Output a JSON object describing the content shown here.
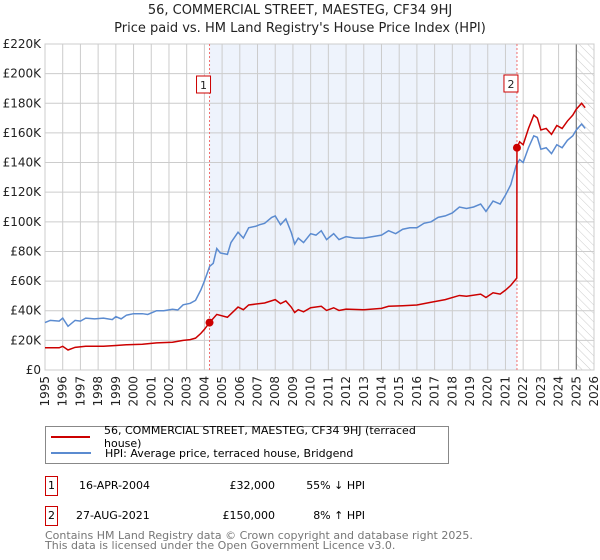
{
  "chart_data": {
    "type": "line",
    "title": "56, COMMERCIAL STREET, MAESTEG, CF34 9HJ",
    "subtitle": "Price paid vs. HM Land Registry's House Price Index (HPI)",
    "xlim": [
      1995,
      2026
    ],
    "ylim": [
      0,
      220000
    ],
    "yticks": [
      {
        "v": 0,
        "label": "£0"
      },
      {
        "v": 20000,
        "label": "£20K"
      },
      {
        "v": 40000,
        "label": "£40K"
      },
      {
        "v": 60000,
        "label": "£60K"
      },
      {
        "v": 80000,
        "label": "£80K"
      },
      {
        "v": 100000,
        "label": "£100K"
      },
      {
        "v": 120000,
        "label": "£120K"
      },
      {
        "v": 140000,
        "label": "£140K"
      },
      {
        "v": 160000,
        "label": "£160K"
      },
      {
        "v": 180000,
        "label": "£180K"
      },
      {
        "v": 200000,
        "label": "£200K"
      },
      {
        "v": 220000,
        "label": "£220K"
      }
    ],
    "xticks": [
      "1995",
      "1996",
      "1997",
      "1998",
      "1999",
      "2000",
      "2001",
      "2002",
      "2003",
      "2004",
      "2005",
      "2006",
      "2007",
      "2008",
      "2009",
      "2010",
      "2011",
      "2012",
      "2013",
      "2014",
      "2015",
      "2016",
      "2017",
      "2018",
      "2019",
      "2020",
      "2021",
      "2022",
      "2023",
      "2024",
      "2025",
      "2026"
    ],
    "grid": true,
    "shaded_range": [
      2004.29,
      2021.65
    ],
    "forecast_from": 2025.0,
    "series": [
      {
        "name": "56, COMMERCIAL STREET, MAESTEG, CF34 9HJ (terraced house)",
        "color": "#cc0000",
        "unit": "K",
        "points": [
          [
            1995.0,
            15
          ],
          [
            1995.8,
            15
          ],
          [
            1996.0,
            16
          ],
          [
            1996.3,
            13.5
          ],
          [
            1996.7,
            15.3
          ],
          [
            1997.3,
            16
          ],
          [
            1998.3,
            16
          ],
          [
            1999.0,
            16.5
          ],
          [
            1999.6,
            17
          ],
          [
            2000.5,
            17.4
          ],
          [
            2001.3,
            18.3
          ],
          [
            2002.2,
            18.7
          ],
          [
            2002.8,
            20
          ],
          [
            2003.2,
            20.5
          ],
          [
            2003.5,
            21.5
          ],
          [
            2003.8,
            24.7
          ],
          [
            2004.0,
            27.4
          ],
          [
            2004.29,
            32
          ],
          [
            2004.7,
            37.5
          ],
          [
            2005.3,
            35.6
          ],
          [
            2005.9,
            42.5
          ],
          [
            2006.2,
            40.7
          ],
          [
            2006.5,
            43.9
          ],
          [
            2007.4,
            45.2
          ],
          [
            2008.0,
            47.5
          ],
          [
            2008.3,
            44.8
          ],
          [
            2008.6,
            46.6
          ],
          [
            2008.9,
            42.5
          ],
          [
            2009.1,
            38.8
          ],
          [
            2009.3,
            40.7
          ],
          [
            2009.6,
            39.3
          ],
          [
            2010.0,
            42
          ],
          [
            2010.6,
            43
          ],
          [
            2010.9,
            40.2
          ],
          [
            2011.3,
            42
          ],
          [
            2011.6,
            40.2
          ],
          [
            2012.0,
            41.1
          ],
          [
            2013.0,
            40.7
          ],
          [
            2014.0,
            41.6
          ],
          [
            2014.4,
            43
          ],
          [
            2015.2,
            43.4
          ],
          [
            2016.0,
            43.9
          ],
          [
            2016.8,
            45.7
          ],
          [
            2017.6,
            47.5
          ],
          [
            2018.4,
            50.3
          ],
          [
            2018.8,
            49.8
          ],
          [
            2019.6,
            51.2
          ],
          [
            2019.9,
            48.9
          ],
          [
            2020.3,
            52.1
          ],
          [
            2020.7,
            51.2
          ],
          [
            2021.0,
            53.9
          ],
          [
            2021.3,
            57.1
          ],
          [
            2021.64,
            62
          ],
          [
            2021.65,
            150
          ],
          [
            2021.8,
            154
          ],
          [
            2022.0,
            152
          ],
          [
            2022.3,
            163
          ],
          [
            2022.6,
            172
          ],
          [
            2022.8,
            170
          ],
          [
            2023.0,
            162
          ],
          [
            2023.3,
            163
          ],
          [
            2023.6,
            159
          ],
          [
            2023.9,
            165
          ],
          [
            2024.2,
            163
          ],
          [
            2024.5,
            168
          ],
          [
            2024.8,
            172
          ],
          [
            2025.0,
            176
          ],
          [
            2025.3,
            180
          ],
          [
            2025.5,
            177
          ]
        ]
      },
      {
        "name": "HPI: Average price, terraced house, Bridgend",
        "color": "#5b8bd0",
        "unit": "K",
        "points": [
          [
            1995.0,
            32
          ],
          [
            1995.3,
            33.5
          ],
          [
            1995.8,
            33
          ],
          [
            1996.0,
            35
          ],
          [
            1996.3,
            29.5
          ],
          [
            1996.7,
            33.5
          ],
          [
            1997.0,
            33
          ],
          [
            1997.3,
            35
          ],
          [
            1997.8,
            34.5
          ],
          [
            1998.3,
            35
          ],
          [
            1998.8,
            34
          ],
          [
            1999.0,
            36
          ],
          [
            1999.3,
            34.5
          ],
          [
            1999.6,
            37
          ],
          [
            2000.0,
            38
          ],
          [
            2000.5,
            38
          ],
          [
            2000.8,
            37.5
          ],
          [
            2001.3,
            40
          ],
          [
            2001.7,
            40
          ],
          [
            2002.2,
            41
          ],
          [
            2002.5,
            40.5
          ],
          [
            2002.8,
            44
          ],
          [
            2003.2,
            45
          ],
          [
            2003.5,
            47
          ],
          [
            2003.8,
            54
          ],
          [
            2004.0,
            60
          ],
          [
            2004.3,
            70
          ],
          [
            2004.5,
            72
          ],
          [
            2004.7,
            82
          ],
          [
            2004.9,
            79
          ],
          [
            2005.3,
            78
          ],
          [
            2005.5,
            86
          ],
          [
            2005.9,
            93
          ],
          [
            2006.2,
            89
          ],
          [
            2006.5,
            96
          ],
          [
            2006.9,
            97
          ],
          [
            2007.1,
            98
          ],
          [
            2007.4,
            99
          ],
          [
            2007.8,
            103
          ],
          [
            2008.0,
            104
          ],
          [
            2008.3,
            98
          ],
          [
            2008.6,
            102
          ],
          [
            2008.9,
            93
          ],
          [
            2009.1,
            85
          ],
          [
            2009.3,
            89
          ],
          [
            2009.6,
            86
          ],
          [
            2010.0,
            92
          ],
          [
            2010.3,
            91
          ],
          [
            2010.6,
            94
          ],
          [
            2010.9,
            88
          ],
          [
            2011.3,
            92
          ],
          [
            2011.6,
            88
          ],
          [
            2012.0,
            90
          ],
          [
            2012.5,
            89
          ],
          [
            2013.0,
            89
          ],
          [
            2013.5,
            90
          ],
          [
            2014.0,
            91
          ],
          [
            2014.4,
            94
          ],
          [
            2014.8,
            92
          ],
          [
            2015.2,
            95
          ],
          [
            2015.6,
            96
          ],
          [
            2016.0,
            96
          ],
          [
            2016.4,
            99
          ],
          [
            2016.8,
            100
          ],
          [
            2017.2,
            103
          ],
          [
            2017.6,
            104
          ],
          [
            2018.0,
            106
          ],
          [
            2018.4,
            110
          ],
          [
            2018.8,
            109
          ],
          [
            2019.2,
            110
          ],
          [
            2019.6,
            112
          ],
          [
            2019.9,
            107
          ],
          [
            2020.3,
            114
          ],
          [
            2020.7,
            112
          ],
          [
            2021.0,
            118
          ],
          [
            2021.3,
            125
          ],
          [
            2021.6,
            138
          ],
          [
            2021.8,
            142
          ],
          [
            2022.0,
            140
          ],
          [
            2022.3,
            150
          ],
          [
            2022.6,
            158
          ],
          [
            2022.8,
            157
          ],
          [
            2023.0,
            149
          ],
          [
            2023.3,
            150
          ],
          [
            2023.6,
            146
          ],
          [
            2023.9,
            152
          ],
          [
            2024.2,
            150
          ],
          [
            2024.5,
            155
          ],
          [
            2024.8,
            158
          ],
          [
            2025.0,
            162
          ],
          [
            2025.3,
            166
          ],
          [
            2025.5,
            163
          ]
        ]
      }
    ],
    "annotations": [
      {
        "label": "1",
        "x": 2004.29,
        "y": 32
      },
      {
        "label": "2",
        "x": 2021.65,
        "y": 150
      }
    ]
  },
  "sales": [
    {
      "num": "1",
      "date": "16-APR-2004",
      "price": "£32,000",
      "hpi": "55% ↓ HPI"
    },
    {
      "num": "2",
      "date": "27-AUG-2021",
      "price": "£150,000",
      "hpi": "8% ↑ HPI"
    }
  ],
  "footer": {
    "line1": "Contains HM Land Registry data © Crown copyright and database right 2025.",
    "line2": "This data is licensed under the Open Government Licence v3.0."
  }
}
